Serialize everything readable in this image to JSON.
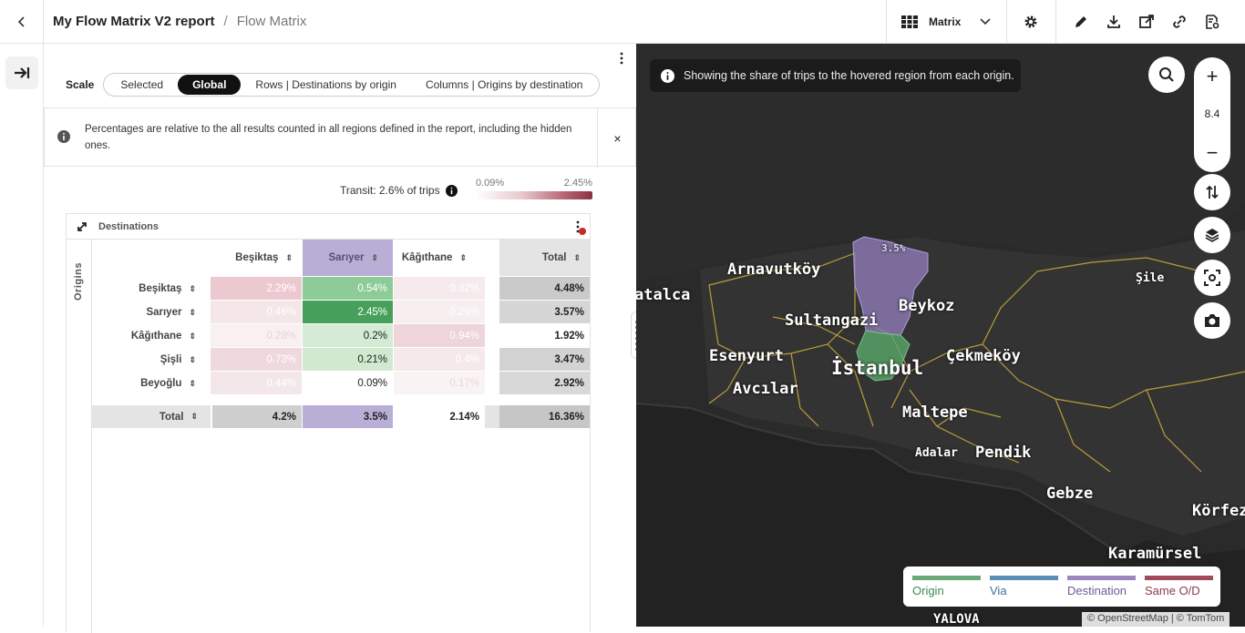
{
  "header": {
    "report_title": "My Flow Matrix V2 report",
    "separator": "/",
    "page_title": "Flow Matrix",
    "view_label": "Matrix"
  },
  "scale": {
    "label": "Scale",
    "options": [
      "Selected",
      "Global",
      "Rows | Destinations by origin",
      "Columns | Origins by destination"
    ],
    "selected": "Global"
  },
  "info": {
    "text": "Percentages are relative to the all results counted in all regions defined in the report, including the hidden ones.",
    "close": "×"
  },
  "transit": {
    "text": "Transit: 2.6% of trips"
  },
  "color_legend": {
    "min": "0.09%",
    "max": "2.45%"
  },
  "matrix": {
    "destinations_label": "Destinations",
    "origins_label": "Origins",
    "badge": "1",
    "columns": [
      "Beşiktaş",
      "Sarıyer",
      "Kâğıthane",
      "Total"
    ],
    "rows": [
      {
        "label": "Beşiktaş",
        "values": [
          "2.29%",
          "0.54%",
          "0.32%"
        ],
        "total": "4.48%"
      },
      {
        "label": "Sarıyer",
        "values": [
          "0.46%",
          "2.45%",
          "0.29%"
        ],
        "total": "3.57%"
      },
      {
        "label": "Kâğıthane",
        "values": [
          "0.28%",
          "0.2%",
          "0.94%"
        ],
        "total": "1.92%"
      },
      {
        "label": "Şişli",
        "values": [
          "0.73%",
          "0.21%",
          "0.4%"
        ],
        "total": "3.47%"
      },
      {
        "label": "Beyoğlu",
        "values": [
          "0.44%",
          "0.09%",
          "0.17%"
        ],
        "total": "2.92%"
      }
    ],
    "total_row": {
      "label": "Total",
      "values": [
        "4.2%",
        "3.5%",
        "2.14%"
      ],
      "total": "16.36%"
    }
  },
  "map": {
    "tooltip": "Showing the share of trips to the hovered region from each origin.",
    "zoom": "8.4",
    "destination_share": "3.5%",
    "places": [
      "Arnavutköy",
      "Beykoz",
      "Şile",
      "atalca",
      "Sultangazi",
      "Esenyurt",
      "İstanbul",
      "Çekmeköy",
      "Avcılar",
      "Maltepe",
      "Adalar",
      "Pendik",
      "Gebze",
      "Körfez",
      "Karamürsel",
      "YALOVA"
    ],
    "legend": [
      {
        "label": "Origin",
        "color": "#6aaa78"
      },
      {
        "label": "Via",
        "color": "#5b8db5"
      },
      {
        "label": "Destination",
        "color": "#9b86c2"
      },
      {
        "label": "Same O/D",
        "color": "#a04a5c"
      }
    ],
    "attribution": "© OpenStreetMap | © TomTom"
  }
}
